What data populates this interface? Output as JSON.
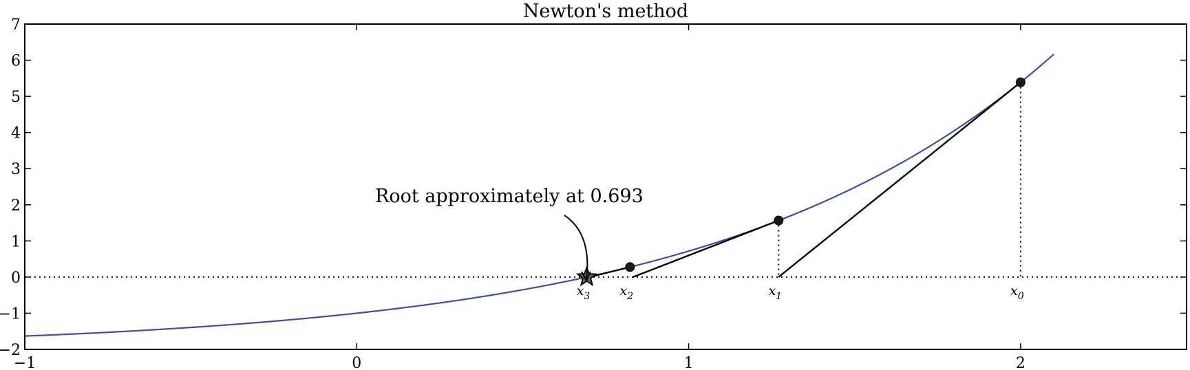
{
  "chart_data": {
    "type": "line",
    "title": "Newton's method",
    "xlabel": "",
    "ylabel": "",
    "xlim": [
      -1,
      2.5
    ],
    "ylim": [
      -2,
      7
    ],
    "x_ticks": [
      -1,
      0,
      1,
      2
    ],
    "x_tick_labels": [
      "−1",
      "0",
      "1",
      "2"
    ],
    "y_ticks": [
      -2,
      -1,
      0,
      1,
      2,
      3,
      4,
      5,
      6,
      7
    ],
    "y_tick_labels": [
      "−2",
      "−1",
      "0",
      "1",
      "2",
      "3",
      "4",
      "5",
      "6",
      "7"
    ],
    "grid": false,
    "curve": {
      "function": "exp(x) - 2",
      "x_range": [
        -1,
        2.1
      ],
      "color": "#3a4fa8"
    },
    "iterates": [
      {
        "label": "x",
        "index": "0",
        "x": 2.0,
        "y": 5.389
      },
      {
        "label": "x",
        "index": "1",
        "x": 1.271,
        "y": 1.565
      },
      {
        "label": "x",
        "index": "2",
        "x": 0.8232,
        "y": 0.278
      }
    ],
    "root": {
      "label": "x",
      "index": "3",
      "x": 0.693,
      "y": 0.0,
      "marker": "star",
      "color": "#6b5f63"
    },
    "annotation": {
      "text": "Root approximately at 0.693"
    }
  }
}
